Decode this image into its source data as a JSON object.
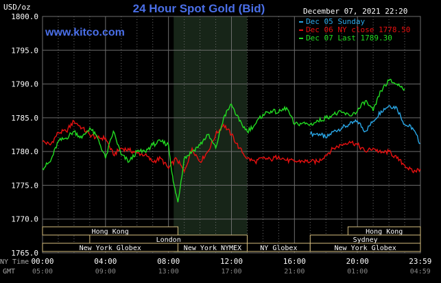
{
  "header": {
    "title": "24 Hour Spot Gold (Bid)",
    "unit": "USD/oz",
    "datetime": "December 07, 2021 22:20",
    "website": "www.kitco.com"
  },
  "legend": [
    {
      "label": "Dec 05 Sunday",
      "color": "#2aa8e8"
    },
    {
      "label": "Dec 06 NY close 1778.50",
      "color": "#e81010"
    },
    {
      "label": "Dec 07 Last 1789.30",
      "color": "#22dd22"
    }
  ],
  "colors": {
    "background": "#000000",
    "grid": "#6e6e6e",
    "shade": "#172518",
    "axis_text": "#ffffff",
    "title": "#4a6fe8"
  },
  "sessions": {
    "row1": [
      {
        "label": "Hong Kong",
        "start": 0.0,
        "end": 8.6
      },
      {
        "label": "Hong Kong",
        "start": 19.4,
        "end": 24.0
      }
    ],
    "row2": [
      {
        "label": "London",
        "start": 3.0,
        "end": 13.0
      },
      {
        "label": "Sydney",
        "start": 17.0,
        "end": 24.0
      }
    ],
    "row3": [
      {
        "label": "New York Globex",
        "start": 0.0,
        "end": 8.6
      },
      {
        "label": "New York NYMEX",
        "start": 8.6,
        "end": 13.0
      },
      {
        "label": "NY Globex",
        "start": 13.0,
        "end": 17.0
      },
      {
        "label": "New York Globex",
        "start": 17.0,
        "end": 24.0
      }
    ]
  },
  "axis_rows": {
    "ny_label": "NY Time",
    "gmt_label": "GMT"
  },
  "chart_data": {
    "type": "line",
    "title": "24 Hour Spot Gold (Bid)",
    "ylabel": "USD/oz",
    "ylim": [
      1765.0,
      1800.0
    ],
    "yticks": [
      "1765.0",
      "1770.0",
      "1775.0",
      "1780.0",
      "1785.0",
      "1790.0",
      "1795.0",
      "1800.0"
    ],
    "xlim": [
      0,
      24
    ],
    "xticks_ny": [
      "00:00",
      "04:00",
      "08:00",
      "12:00",
      "16:00",
      "20:00",
      "23:59"
    ],
    "xticks_gmt": [
      "05:00",
      "09:00",
      "13:00",
      "17:00",
      "21:00",
      "01:00",
      "04:59"
    ],
    "shaded_hours": [
      8.33,
      13.0
    ],
    "series": [
      {
        "name": "Dec 05 Sunday",
        "color": "#2aa8e8",
        "x": [
          17.0,
          17.6,
          18.0,
          18.5,
          19.0,
          19.5,
          20.0,
          20.5,
          21.0,
          21.5,
          22.0,
          22.5,
          23.0,
          23.5,
          23.99
        ],
        "y": [
          1782.6,
          1782.6,
          1782.0,
          1783.0,
          1783.5,
          1784.0,
          1784.5,
          1783.0,
          1784.5,
          1786.0,
          1786.8,
          1786.5,
          1784.0,
          1783.5,
          1781.2
        ]
      },
      {
        "name": "Dec 06 NY close 1778.50",
        "color": "#e81010",
        "x": [
          0.0,
          0.5,
          1.0,
          1.5,
          2.0,
          2.5,
          3.0,
          3.5,
          4.0,
          4.5,
          5.0,
          5.5,
          6.0,
          6.5,
          7.0,
          7.5,
          8.0,
          8.5,
          9.0,
          9.5,
          10.0,
          10.5,
          11.0,
          11.5,
          12.0,
          12.5,
          13.0,
          13.5,
          14.0,
          14.5,
          15.0,
          15.5,
          16.0,
          16.5,
          17.0,
          17.5,
          18.0,
          18.5,
          19.0,
          19.5,
          20.0,
          20.5,
          21.0,
          21.5,
          22.0,
          22.5,
          23.0,
          23.5,
          23.99
        ],
        "y": [
          1781.5,
          1781.0,
          1782.8,
          1783.0,
          1784.5,
          1783.5,
          1782.5,
          1782.0,
          1782.0,
          1779.5,
          1780.5,
          1780.2,
          1779.8,
          1779.5,
          1778.5,
          1779.0,
          1777.5,
          1779.0,
          1777.0,
          1780.5,
          1778.5,
          1780.0,
          1782.5,
          1784.0,
          1782.5,
          1780.5,
          1779.0,
          1778.5,
          1779.0,
          1778.8,
          1779.3,
          1778.7,
          1778.5,
          1778.6,
          1778.5,
          1778.5,
          1779.5,
          1780.5,
          1781.0,
          1781.5,
          1781.0,
          1780.0,
          1780.5,
          1779.8,
          1780.0,
          1779.0,
          1778.0,
          1777.0,
          1777.4
        ]
      },
      {
        "name": "Dec 07 Last 1789.30",
        "color": "#22dd22",
        "x": [
          0.0,
          0.5,
          1.0,
          1.5,
          2.0,
          2.5,
          3.0,
          3.5,
          4.0,
          4.5,
          5.0,
          5.5,
          6.0,
          6.5,
          7.0,
          7.5,
          8.0,
          8.3,
          8.6,
          9.0,
          9.5,
          10.0,
          10.5,
          11.0,
          11.5,
          12.0,
          12.5,
          13.0,
          13.5,
          14.0,
          14.5,
          15.0,
          15.5,
          16.0,
          16.5,
          17.0,
          17.5,
          18.0,
          18.5,
          19.0,
          19.5,
          20.0,
          20.5,
          21.0,
          21.5,
          22.0,
          22.5,
          23.0
        ],
        "y": [
          1777.5,
          1778.5,
          1781.5,
          1782.0,
          1783.0,
          1782.0,
          1783.5,
          1782.0,
          1779.0,
          1783.0,
          1779.5,
          1778.5,
          1780.0,
          1780.0,
          1781.0,
          1781.5,
          1781.0,
          1775.5,
          1772.5,
          1779.0,
          1780.0,
          1781.0,
          1782.5,
          1780.5,
          1785.0,
          1787.0,
          1784.5,
          1783.0,
          1784.0,
          1785.5,
          1786.0,
          1785.8,
          1786.5,
          1784.0,
          1784.2,
          1784.0,
          1784.5,
          1785.0,
          1785.5,
          1785.8,
          1785.3,
          1786.0,
          1787.5,
          1786.0,
          1789.0,
          1790.5,
          1790.0,
          1789.3
        ]
      }
    ]
  }
}
